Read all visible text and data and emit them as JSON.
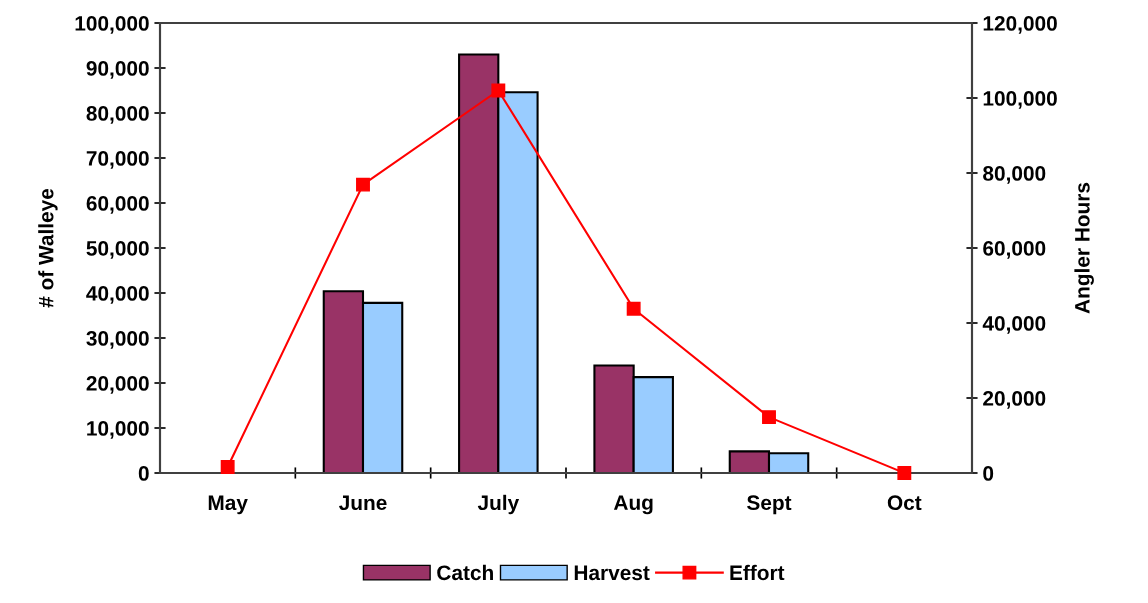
{
  "chart_data": {
    "type": "bar",
    "categories": [
      "May",
      "June",
      "July",
      "Aug",
      "Sept",
      "Oct"
    ],
    "ylabel": "# of Walleye",
    "y2label": "Angler Hours",
    "series": [
      {
        "name": "Catch",
        "color": "#993366",
        "values": [
          null,
          40400,
          93000,
          23900,
          4800,
          null
        ]
      },
      {
        "name": "Harvest",
        "color": "#99ccff",
        "values": [
          null,
          37800,
          84600,
          21300,
          4400,
          null
        ]
      },
      {
        "name": "Effort",
        "type": "line",
        "axis": "y2",
        "color": "#ff0000",
        "marker": "square",
        "values": [
          1600,
          76900,
          102000,
          43800,
          14900,
          0
        ]
      }
    ],
    "ylim": [
      0,
      100000
    ],
    "yticks": [
      {
        "value": 0,
        "label": "0"
      },
      {
        "value": 10000,
        "label": "10,000"
      },
      {
        "value": 20000,
        "label": "20,000"
      },
      {
        "value": 30000,
        "label": "30,000"
      },
      {
        "value": 40000,
        "label": "40,000"
      },
      {
        "value": 50000,
        "label": "50,000"
      },
      {
        "value": 60000,
        "label": "60,000"
      },
      {
        "value": 70000,
        "label": "70,000"
      },
      {
        "value": 80000,
        "label": "80,000"
      },
      {
        "value": 90000,
        "label": "90,000"
      },
      {
        "value": 100000,
        "label": "100,000"
      }
    ],
    "y2lim": [
      0,
      120000
    ],
    "y2ticks": [
      {
        "value": 0,
        "label": "0"
      },
      {
        "value": 20000,
        "label": "20,000"
      },
      {
        "value": 40000,
        "label": "40,000"
      },
      {
        "value": 60000,
        "label": "60,000"
      },
      {
        "value": 80000,
        "label": "80,000"
      },
      {
        "value": 100000,
        "label": "100,000"
      },
      {
        "value": 120000,
        "label": "120,000"
      }
    ],
    "grid": false,
    "legend": "bottom"
  }
}
